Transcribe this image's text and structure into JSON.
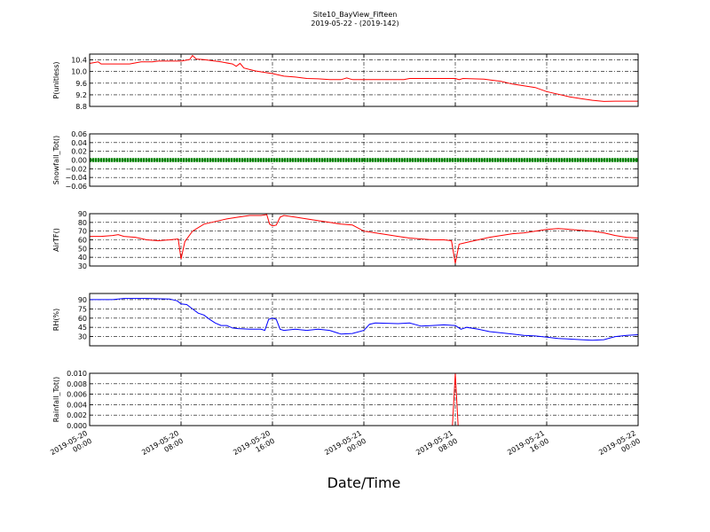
{
  "chart_data": {
    "type": "line",
    "title": "Site10_BayView_Fifteen",
    "subtitle": "2019-05-22 - (2019-142)",
    "xlabel": "Date/Time",
    "x_range": [
      "2019-05-20 00:00",
      "2019-05-22 00:00"
    ],
    "x_tick_labels": [
      [
        "2019-05-20",
        "00:00"
      ],
      [
        "2019-05-20",
        "08:00"
      ],
      [
        "2019-05-20",
        "16:00"
      ],
      [
        "2019-05-21",
        "00:00"
      ],
      [
        "2019-05-21",
        "08:00"
      ],
      [
        "2019-05-21",
        "16:00"
      ],
      [
        "2019-05-22",
        "00:00"
      ]
    ],
    "grid": true,
    "panels": [
      {
        "ylabel": "P(unitless)",
        "ylim": [
          8.8,
          10.6
        ],
        "yticks": [
          "8.8",
          "9.2",
          "9.6",
          "10.0",
          "10.4"
        ],
        "color": "#ff0000",
        "points": [
          [
            "2019-05-20 00:00",
            10.28
          ],
          [
            "2019-05-20 00:45",
            10.33
          ],
          [
            "2019-05-20 01:00",
            10.26
          ],
          [
            "2019-05-20 03:30",
            10.26
          ],
          [
            "2019-05-20 04:30",
            10.33
          ],
          [
            "2019-05-20 05:30",
            10.33
          ],
          [
            "2019-05-20 06:00",
            10.36
          ],
          [
            "2019-05-20 08:00",
            10.36
          ],
          [
            "2019-05-20 08:45",
            10.41
          ],
          [
            "2019-05-20 09:00",
            10.55
          ],
          [
            "2019-05-20 09:20",
            10.43
          ],
          [
            "2019-05-20 10:00",
            10.41
          ],
          [
            "2019-05-20 11:30",
            10.33
          ],
          [
            "2019-05-20 12:30",
            10.26
          ],
          [
            "2019-05-20 12:50",
            10.18
          ],
          [
            "2019-05-20 13:10",
            10.28
          ],
          [
            "2019-05-20 13:30",
            10.12
          ],
          [
            "2019-05-20 14:30",
            10.02
          ],
          [
            "2019-05-20 16:00",
            9.93
          ],
          [
            "2019-05-20 17:00",
            9.84
          ],
          [
            "2019-05-20 18:00",
            9.81
          ],
          [
            "2019-05-20 19:00",
            9.76
          ],
          [
            "2019-05-20 20:00",
            9.75
          ],
          [
            "2019-05-20 21:00",
            9.72
          ],
          [
            "2019-05-20 22:00",
            9.72
          ],
          [
            "2019-05-20 22:30",
            9.78
          ],
          [
            "2019-05-20 23:00",
            9.72
          ],
          [
            "2019-05-21 03:30",
            9.72
          ],
          [
            "2019-05-21 04:00",
            9.76
          ],
          [
            "2019-05-21 08:00",
            9.76
          ],
          [
            "2019-05-21 08:20",
            9.72
          ],
          [
            "2019-05-21 08:40",
            9.76
          ],
          [
            "2019-05-21 10:30",
            9.74
          ],
          [
            "2019-05-21 12:00",
            9.66
          ],
          [
            "2019-05-21 13:00",
            9.57
          ],
          [
            "2019-05-21 15:00",
            9.45
          ],
          [
            "2019-05-21 16:00",
            9.31
          ],
          [
            "2019-05-21 18:00",
            9.13
          ],
          [
            "2019-05-21 19:00",
            9.07
          ],
          [
            "2019-05-21 20:00",
            9.01
          ],
          [
            "2019-05-21 21:00",
            8.97
          ],
          [
            "2019-05-21 22:00",
            8.98
          ],
          [
            "2019-05-21 23:00",
            8.98
          ],
          [
            "2019-05-22 00:00",
            8.98
          ]
        ]
      },
      {
        "ylabel": "Snowfall_Tot()",
        "ylim": [
          -0.06,
          0.06
        ],
        "yticks": [
          "−0.06",
          "−0.04",
          "−0.02",
          "0.00",
          "0.02",
          "0.04",
          "0.06"
        ],
        "color": "#008000",
        "style": "dots",
        "constant_value": 0.0
      },
      {
        "ylabel": "AirTF()",
        "ylim": [
          30,
          90
        ],
        "yticks": [
          "30",
          "40",
          "50",
          "60",
          "70",
          "80",
          "90"
        ],
        "color": "#ff0000",
        "points": [
          [
            "2019-05-20 00:00",
            64
          ],
          [
            "2019-05-20 01:00",
            64
          ],
          [
            "2019-05-20 02:00",
            65
          ],
          [
            "2019-05-20 02:30",
            66
          ],
          [
            "2019-05-20 03:00",
            64
          ],
          [
            "2019-05-20 04:00",
            63
          ],
          [
            "2019-05-20 05:00",
            60
          ],
          [
            "2019-05-20 06:00",
            59
          ],
          [
            "2019-05-20 07:00",
            60
          ],
          [
            "2019-05-20 07:45",
            61
          ],
          [
            "2019-05-20 08:00",
            38
          ],
          [
            "2019-05-20 08:20",
            58
          ],
          [
            "2019-05-20 09:00",
            70
          ],
          [
            "2019-05-20 10:00",
            78
          ],
          [
            "2019-05-20 11:00",
            81
          ],
          [
            "2019-05-20 12:00",
            84
          ],
          [
            "2019-05-20 13:00",
            86
          ],
          [
            "2019-05-20 14:00",
            88
          ],
          [
            "2019-05-20 15:00",
            88
          ],
          [
            "2019-05-20 15:30",
            89
          ],
          [
            "2019-05-20 15:45",
            78
          ],
          [
            "2019-05-20 16:00",
            76
          ],
          [
            "2019-05-20 16:20",
            77
          ],
          [
            "2019-05-20 16:40",
            86
          ],
          [
            "2019-05-20 17:00",
            88
          ],
          [
            "2019-05-20 18:00",
            86
          ],
          [
            "2019-05-20 19:00",
            84
          ],
          [
            "2019-05-20 20:00",
            82
          ],
          [
            "2019-05-20 21:00",
            80
          ],
          [
            "2019-05-20 22:00",
            78
          ],
          [
            "2019-05-20 23:00",
            77
          ],
          [
            "2019-05-21 00:00",
            70
          ],
          [
            "2019-05-21 01:00",
            68
          ],
          [
            "2019-05-21 02:00",
            66
          ],
          [
            "2019-05-21 03:00",
            64
          ],
          [
            "2019-05-21 04:00",
            62
          ],
          [
            "2019-05-21 05:00",
            61
          ],
          [
            "2019-05-21 06:00",
            60
          ],
          [
            "2019-05-21 07:00",
            60
          ],
          [
            "2019-05-21 07:40",
            59
          ],
          [
            "2019-05-21 08:00",
            33
          ],
          [
            "2019-05-21 08:20",
            55
          ],
          [
            "2019-05-21 09:00",
            57
          ],
          [
            "2019-05-21 10:00",
            60
          ],
          [
            "2019-05-21 11:00",
            63
          ],
          [
            "2019-05-21 12:00",
            65
          ],
          [
            "2019-05-21 13:00",
            67
          ],
          [
            "2019-05-21 14:00",
            68
          ],
          [
            "2019-05-21 15:00",
            70
          ],
          [
            "2019-05-21 16:00",
            72
          ],
          [
            "2019-05-21 17:00",
            73
          ],
          [
            "2019-05-21 18:00",
            72
          ],
          [
            "2019-05-21 19:00",
            71
          ],
          [
            "2019-05-21 20:00",
            70
          ],
          [
            "2019-05-21 21:00",
            68
          ],
          [
            "2019-05-21 22:00",
            65
          ],
          [
            "2019-05-21 23:00",
            63
          ],
          [
            "2019-05-22 00:00",
            62
          ]
        ]
      },
      {
        "ylabel": "RH(%)",
        "ylim": [
          15,
          100
        ],
        "yticks": [
          "30",
          "45",
          "60",
          "75",
          "90"
        ],
        "color": "#0000ff",
        "points": [
          [
            "2019-05-20 00:00",
            90
          ],
          [
            "2019-05-20 02:00",
            90
          ],
          [
            "2019-05-20 03:00",
            92
          ],
          [
            "2019-05-20 05:00",
            92
          ],
          [
            "2019-05-20 07:00",
            91
          ],
          [
            "2019-05-20 07:40",
            88
          ],
          [
            "2019-05-20 08:00",
            83
          ],
          [
            "2019-05-20 08:30",
            82
          ],
          [
            "2019-05-20 09:00",
            75
          ],
          [
            "2019-05-20 09:30",
            68
          ],
          [
            "2019-05-20 10:00",
            65
          ],
          [
            "2019-05-20 10:30",
            58
          ],
          [
            "2019-05-20 11:00",
            52
          ],
          [
            "2019-05-20 11:30",
            48
          ],
          [
            "2019-05-20 12:00",
            48
          ],
          [
            "2019-05-20 12:30",
            44
          ],
          [
            "2019-05-20 13:00",
            43
          ],
          [
            "2019-05-20 14:00",
            42
          ],
          [
            "2019-05-20 15:00",
            42
          ],
          [
            "2019-05-20 15:20",
            40
          ],
          [
            "2019-05-20 15:40",
            58
          ],
          [
            "2019-05-20 16:00",
            60
          ],
          [
            "2019-05-20 16:20",
            58
          ],
          [
            "2019-05-20 16:40",
            42
          ],
          [
            "2019-05-20 17:00",
            40
          ],
          [
            "2019-05-20 18:00",
            42
          ],
          [
            "2019-05-20 19:00",
            40
          ],
          [
            "2019-05-20 20:00",
            42
          ],
          [
            "2019-05-20 21:00",
            40
          ],
          [
            "2019-05-20 22:00",
            34
          ],
          [
            "2019-05-20 23:00",
            35
          ],
          [
            "2019-05-21 00:00",
            40
          ],
          [
            "2019-05-21 00:30",
            50
          ],
          [
            "2019-05-21 01:00",
            52
          ],
          [
            "2019-05-21 03:00",
            51
          ],
          [
            "2019-05-21 04:00",
            52
          ],
          [
            "2019-05-21 05:00",
            47
          ],
          [
            "2019-05-21 06:00",
            48
          ],
          [
            "2019-05-21 07:00",
            49
          ],
          [
            "2019-05-21 08:00",
            48
          ],
          [
            "2019-05-21 08:30",
            42
          ],
          [
            "2019-05-21 09:00",
            45
          ],
          [
            "2019-05-21 10:00",
            42
          ],
          [
            "2019-05-21 11:00",
            38
          ],
          [
            "2019-05-21 12:00",
            36
          ],
          [
            "2019-05-21 13:00",
            34
          ],
          [
            "2019-05-21 14:00",
            32
          ],
          [
            "2019-05-21 15:00",
            31
          ],
          [
            "2019-05-21 16:00",
            29
          ],
          [
            "2019-05-21 17:00",
            27
          ],
          [
            "2019-05-21 18:00",
            26
          ],
          [
            "2019-05-21 19:00",
            25
          ],
          [
            "2019-05-21 20:00",
            24
          ],
          [
            "2019-05-21 21:00",
            25
          ],
          [
            "2019-05-21 22:00",
            30
          ],
          [
            "2019-05-21 23:00",
            32
          ],
          [
            "2019-05-22 00:00",
            33
          ]
        ]
      },
      {
        "ylabel": "Rainfall_Tot()",
        "ylim": [
          0.0,
          0.01
        ],
        "yticks": [
          "0.000",
          "0.002",
          "0.004",
          "0.006",
          "0.008",
          "0.010"
        ],
        "color": "#ff0000",
        "points": [
          [
            "2019-05-20 00:00",
            0.0
          ],
          [
            "2019-05-21 07:45",
            0.0
          ],
          [
            "2019-05-21 08:00",
            0.01
          ],
          [
            "2019-05-21 08:15",
            0.0
          ],
          [
            "2019-05-22 00:00",
            0.0
          ]
        ]
      }
    ]
  }
}
